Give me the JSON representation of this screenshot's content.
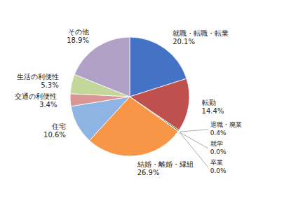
{
  "chart_data": {
    "type": "pie",
    "categories": [
      "就職・転職・転業",
      "転勤",
      "退職・廃業",
      "就学",
      "卒業",
      "結婚・離婚・縁組",
      "住宅",
      "交通の利便性",
      "生活の利便性",
      "その他"
    ],
    "values": [
      20.1,
      14.4,
      0.4,
      0.0,
      0.0,
      26.9,
      10.6,
      3.4,
      5.3,
      18.9
    ],
    "value_labels": [
      "20.1%",
      "14.4%",
      "0.4%",
      "0.0%",
      "0.0%",
      "26.9%",
      "10.6%",
      "3.4%",
      "5.3%",
      "18.9%"
    ],
    "colors": [
      "#4472C4",
      "#C0504D",
      "#3E7C3E",
      "#888888",
      "#888888",
      "#F79646",
      "#8DB4E2",
      "#DA9694",
      "#C4D79B",
      "#B1A0C7"
    ],
    "data_labels": true
  }
}
